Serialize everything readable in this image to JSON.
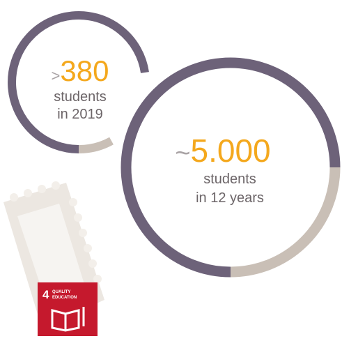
{
  "stats": [
    {
      "prefix": ">",
      "number": "380",
      "lines": [
        "students",
        "in 2019"
      ]
    },
    {
      "prefix": "~",
      "number": "5.000",
      "lines": [
        "students",
        "in 12 years"
      ]
    }
  ],
  "badge": {
    "number": "4",
    "title_lines": [
      "QUALITY",
      "EDUCATION"
    ]
  }
}
